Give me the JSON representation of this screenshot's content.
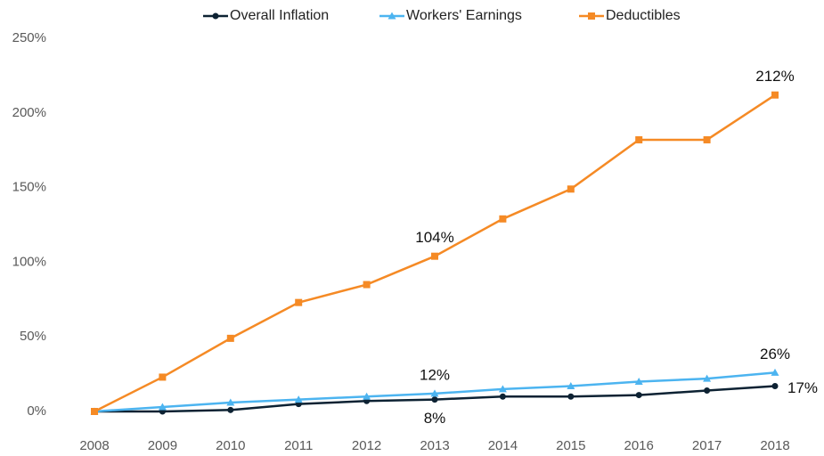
{
  "chart_data": {
    "type": "line",
    "categories": [
      "2008",
      "2009",
      "2010",
      "2011",
      "2012",
      "2013",
      "2014",
      "2015",
      "2016",
      "2017",
      "2018"
    ],
    "series": [
      {
        "name": "Overall Inflation",
        "color": "#0d2233",
        "marker": "circle",
        "values": [
          0,
          0,
          1,
          5,
          7,
          8,
          10,
          10,
          11,
          14,
          17
        ],
        "value_labels": [
          null,
          null,
          null,
          null,
          null,
          "8%",
          null,
          null,
          null,
          null,
          "17%"
        ]
      },
      {
        "name": "Workers' Earnings",
        "color": "#4cb4f0",
        "marker": "triangle",
        "values": [
          0,
          3,
          6,
          8,
          10,
          12,
          15,
          17,
          20,
          22,
          26
        ],
        "value_labels": [
          null,
          null,
          null,
          null,
          null,
          "12%",
          null,
          null,
          null,
          null,
          "26%"
        ]
      },
      {
        "name": "Deductibles",
        "color": "#f58a25",
        "marker": "square",
        "values": [
          0,
          23,
          49,
          73,
          85,
          104,
          129,
          149,
          182,
          182,
          212
        ],
        "value_labels": [
          null,
          null,
          null,
          null,
          null,
          "104%",
          null,
          null,
          null,
          null,
          "212%"
        ]
      }
    ],
    "ylim": [
      0,
      250
    ],
    "yticks": [
      {
        "value": 0,
        "label": "0%"
      },
      {
        "value": 50,
        "label": "50%"
      },
      {
        "value": 100,
        "label": "100%"
      },
      {
        "value": 150,
        "label": "150%"
      },
      {
        "value": 200,
        "label": "200%"
      },
      {
        "value": 250,
        "label": "250%"
      }
    ],
    "legend": "top",
    "grid": false
  }
}
